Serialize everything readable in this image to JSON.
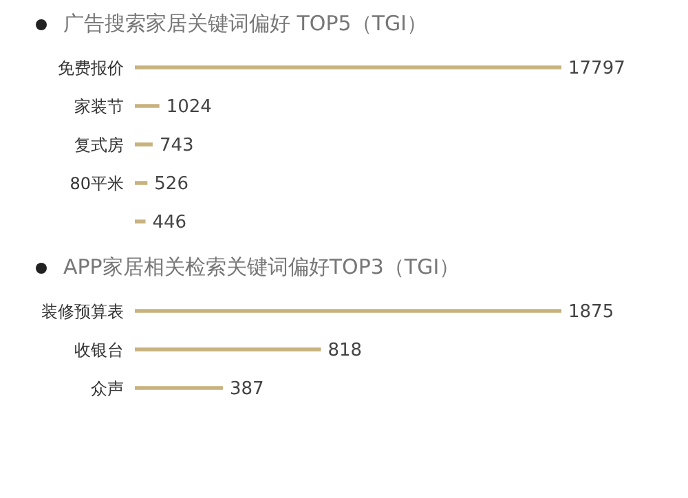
{
  "chart_data": [
    {
      "type": "bar",
      "orientation": "horizontal",
      "title": "广告搜索家居关键词偏好 TOP5（TGI）",
      "categories": [
        "免费报价",
        "家装节",
        "复式房",
        "80平米",
        null
      ],
      "values": [
        17797,
        1024,
        743,
        526,
        446
      ],
      "color": "#c8b27e",
      "data_labels": true
    },
    {
      "type": "bar",
      "orientation": "horizontal",
      "title": "APP家居相关检索关键词偏好TOP3（TGI）",
      "categories": [
        "装修预算表",
        "收银台",
        "众声"
      ],
      "values": [
        1875,
        818,
        387
      ],
      "color": "#c8b27e",
      "data_labels": true
    }
  ]
}
